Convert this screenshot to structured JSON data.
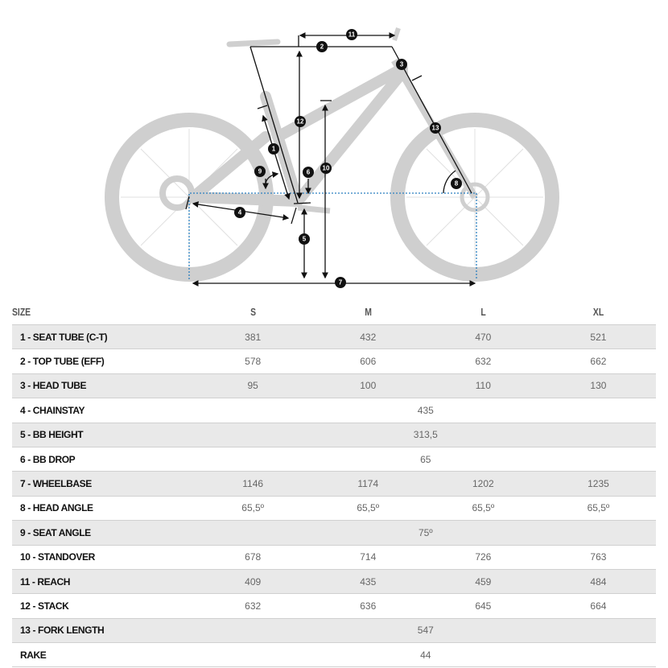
{
  "diagram": {
    "labels": [
      "1",
      "2",
      "3",
      "4",
      "5",
      "6",
      "7",
      "8",
      "9",
      "10",
      "11",
      "12",
      "13"
    ],
    "guide_color": "#2a7fc0",
    "bike_color": "#cfcfcf"
  },
  "table": {
    "headers": [
      "SIZE",
      "S",
      "M",
      "L",
      "XL"
    ],
    "rows": [
      {
        "label": "1 - SEAT TUBE (C-T)",
        "values": [
          "381",
          "432",
          "470",
          "521"
        ]
      },
      {
        "label": "2 - TOP TUBE (EFF)",
        "values": [
          "578",
          "606",
          "632",
          "662"
        ]
      },
      {
        "label": "3 - HEAD TUBE",
        "values": [
          "95",
          "100",
          "110",
          "130"
        ]
      },
      {
        "label": "4 - CHAINSTAY",
        "all": "435"
      },
      {
        "label": "5 - BB HEIGHT",
        "all": "313,5"
      },
      {
        "label": "6 - BB DROP",
        "all": "65"
      },
      {
        "label": "7 - WHEELBASE",
        "values": [
          "1146",
          "1174",
          "1202",
          "1235"
        ]
      },
      {
        "label": "8 - HEAD ANGLE",
        "values": [
          "65,5º",
          "65,5º",
          "65,5º",
          "65,5º"
        ]
      },
      {
        "label": "9 - SEAT ANGLE",
        "all": "75º"
      },
      {
        "label": "10 - STANDOVER",
        "values": [
          "678",
          "714",
          "726",
          "763"
        ]
      },
      {
        "label": "11 - REACH",
        "values": [
          "409",
          "435",
          "459",
          "484"
        ]
      },
      {
        "label": "12 - STACK",
        "values": [
          "632",
          "636",
          "645",
          "664"
        ]
      },
      {
        "label": "13 - FORK LENGTH",
        "all": "547"
      },
      {
        "label": "RAKE",
        "all": "44"
      }
    ]
  }
}
